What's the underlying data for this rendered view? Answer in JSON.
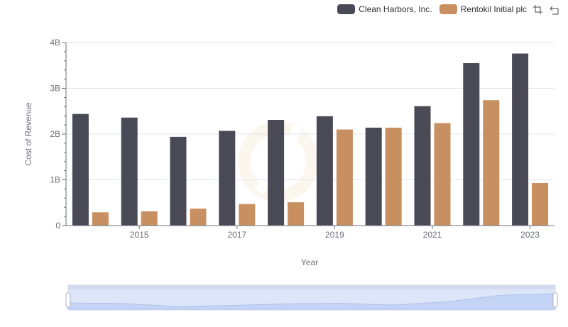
{
  "legend": [
    {
      "label": "Clean Harbors, Inc.",
      "color": "#4a4a56"
    },
    {
      "label": "Rentokil Initial plc",
      "color": "#c89060"
    }
  ],
  "toolbox": {
    "icons": [
      "zoom-icon",
      "reset-icon"
    ]
  },
  "chart_data": {
    "type": "bar",
    "categories": [
      "2014",
      "2015",
      "2016",
      "2017",
      "2018",
      "2019",
      "2020",
      "2021",
      "2022",
      "2023"
    ],
    "x_tick_labels": [
      "2015",
      "2017",
      "2019",
      "2021",
      "2023"
    ],
    "series": [
      {
        "name": "Clean Harbors, Inc.",
        "color": "#4a4a56",
        "values": [
          2.44,
          2.36,
          1.94,
          2.07,
          2.31,
          2.39,
          2.14,
          2.61,
          3.55,
          3.76
        ]
      },
      {
        "name": "Rentokil Initial plc",
        "color": "#c89060",
        "values": [
          0.29,
          0.31,
          0.37,
          0.47,
          0.51,
          2.1,
          2.14,
          2.24,
          2.74,
          0.93
        ]
      }
    ],
    "unit": "B",
    "ylim": [
      0,
      4
    ],
    "y_ticks": [
      0,
      1,
      2,
      3,
      4
    ],
    "y_tick_labels": [
      "0",
      "1B",
      "2B",
      "3B",
      "4B"
    ],
    "xlabel": "Year",
    "ylabel": "Cost of Revenue",
    "grid": true,
    "legend_position": "top-right",
    "data_zoom": true
  }
}
